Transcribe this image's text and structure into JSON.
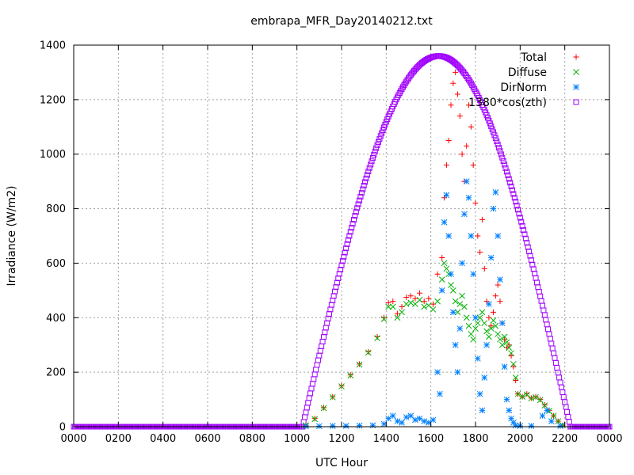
{
  "chart_data": {
    "type": "scatter",
    "title": "embrapa_MFR_Day20140212.txt",
    "xlabel": "UTC Hour",
    "ylabel": "Irradiance (W/m2)",
    "xlim": [
      0,
      24
    ],
    "ylim": [
      0,
      1400
    ],
    "grid": true,
    "legend_position": "top-right",
    "x_ticks": [
      {
        "value": 0,
        "label": "0000"
      },
      {
        "value": 2,
        "label": "0200"
      },
      {
        "value": 4,
        "label": "0400"
      },
      {
        "value": 6,
        "label": "0600"
      },
      {
        "value": 8,
        "label": "0800"
      },
      {
        "value": 10,
        "label": "1000"
      },
      {
        "value": 12,
        "label": "1200"
      },
      {
        "value": 14,
        "label": "1400"
      },
      {
        "value": 16,
        "label": "1600"
      },
      {
        "value": 18,
        "label": "1800"
      },
      {
        "value": 20,
        "label": "2000"
      },
      {
        "value": 22,
        "label": "2200"
      },
      {
        "value": 24,
        "label": "0000"
      }
    ],
    "y_ticks": [
      0,
      200,
      400,
      600,
      800,
      1000,
      1200,
      1400
    ],
    "series": [
      {
        "name": "Total",
        "marker": "plus",
        "color": "#ff0000",
        "points": [
          [
            10.4,
            5
          ],
          [
            10.8,
            30
          ],
          [
            11.2,
            70
          ],
          [
            11.6,
            110
          ],
          [
            12.0,
            150
          ],
          [
            12.4,
            190
          ],
          [
            12.8,
            230
          ],
          [
            13.2,
            275
          ],
          [
            13.6,
            330
          ],
          [
            13.9,
            400
          ],
          [
            14.1,
            455
          ],
          [
            14.3,
            460
          ],
          [
            14.5,
            415
          ],
          [
            14.7,
            440
          ],
          [
            14.9,
            475
          ],
          [
            15.1,
            480
          ],
          [
            15.3,
            470
          ],
          [
            15.5,
            490
          ],
          [
            15.7,
            460
          ],
          [
            15.9,
            470
          ],
          [
            16.1,
            450
          ],
          [
            16.3,
            560
          ],
          [
            16.5,
            620
          ],
          [
            16.6,
            840
          ],
          [
            16.7,
            960
          ],
          [
            16.8,
            1050
          ],
          [
            16.9,
            1180
          ],
          [
            17.0,
            1260
          ],
          [
            17.1,
            1300
          ],
          [
            17.2,
            1220
          ],
          [
            17.3,
            1140
          ],
          [
            17.4,
            1000
          ],
          [
            17.5,
            900
          ],
          [
            17.6,
            1030
          ],
          [
            17.7,
            1180
          ],
          [
            17.8,
            1100
          ],
          [
            17.9,
            960
          ],
          [
            18.0,
            820
          ],
          [
            18.1,
            700
          ],
          [
            18.2,
            640
          ],
          [
            18.3,
            760
          ],
          [
            18.4,
            580
          ],
          [
            18.5,
            460
          ],
          [
            18.6,
            400
          ],
          [
            18.7,
            370
          ],
          [
            18.8,
            420
          ],
          [
            18.9,
            480
          ],
          [
            19.0,
            520
          ],
          [
            19.1,
            460
          ],
          [
            19.2,
            380
          ],
          [
            19.3,
            320
          ],
          [
            19.4,
            290
          ],
          [
            19.5,
            300
          ],
          [
            19.6,
            260
          ],
          [
            19.7,
            220
          ],
          [
            19.8,
            170
          ],
          [
            19.9,
            120
          ],
          [
            20.1,
            110
          ],
          [
            20.3,
            120
          ],
          [
            20.5,
            105
          ],
          [
            20.7,
            110
          ],
          [
            20.9,
            100
          ],
          [
            21.1,
            80
          ],
          [
            21.3,
            60
          ],
          [
            21.5,
            40
          ],
          [
            21.7,
            20
          ],
          [
            21.9,
            5
          ]
        ]
      },
      {
        "name": "Diffuse",
        "marker": "cross",
        "color": "#00b000",
        "points": [
          [
            10.4,
            5
          ],
          [
            10.8,
            28
          ],
          [
            11.2,
            68
          ],
          [
            11.6,
            108
          ],
          [
            12.0,
            148
          ],
          [
            12.4,
            188
          ],
          [
            12.8,
            228
          ],
          [
            13.2,
            272
          ],
          [
            13.6,
            325
          ],
          [
            13.9,
            395
          ],
          [
            14.1,
            440
          ],
          [
            14.3,
            440
          ],
          [
            14.5,
            400
          ],
          [
            14.7,
            420
          ],
          [
            14.9,
            450
          ],
          [
            15.1,
            455
          ],
          [
            15.3,
            450
          ],
          [
            15.5,
            465
          ],
          [
            15.7,
            440
          ],
          [
            15.9,
            445
          ],
          [
            16.1,
            430
          ],
          [
            16.3,
            460
          ],
          [
            16.5,
            540
          ],
          [
            16.6,
            600
          ],
          [
            16.7,
            580
          ],
          [
            16.8,
            560
          ],
          [
            16.9,
            520
          ],
          [
            17.0,
            500
          ],
          [
            17.1,
            460
          ],
          [
            17.2,
            420
          ],
          [
            17.3,
            450
          ],
          [
            17.4,
            480
          ],
          [
            17.5,
            440
          ],
          [
            17.6,
            400
          ],
          [
            17.7,
            370
          ],
          [
            17.8,
            340
          ],
          [
            17.9,
            320
          ],
          [
            18.0,
            360
          ],
          [
            18.1,
            380
          ],
          [
            18.2,
            400
          ],
          [
            18.3,
            420
          ],
          [
            18.4,
            380
          ],
          [
            18.5,
            350
          ],
          [
            18.6,
            330
          ],
          [
            18.7,
            360
          ],
          [
            18.8,
            390
          ],
          [
            18.9,
            370
          ],
          [
            19.0,
            340
          ],
          [
            19.1,
            320
          ],
          [
            19.2,
            300
          ],
          [
            19.3,
            330
          ],
          [
            19.4,
            310
          ],
          [
            19.5,
            290
          ],
          [
            19.6,
            270
          ],
          [
            19.7,
            230
          ],
          [
            19.8,
            180
          ],
          [
            19.9,
            120
          ],
          [
            20.1,
            110
          ],
          [
            20.3,
            118
          ],
          [
            20.5,
            104
          ],
          [
            20.7,
            108
          ],
          [
            20.9,
            98
          ],
          [
            21.1,
            78
          ],
          [
            21.3,
            58
          ],
          [
            21.5,
            40
          ],
          [
            21.7,
            20
          ],
          [
            21.9,
            5
          ]
        ]
      },
      {
        "name": "DirNorm",
        "marker": "star",
        "color": "#0080ff",
        "points": [
          [
            10.4,
            2
          ],
          [
            11.0,
            2
          ],
          [
            11.6,
            3
          ],
          [
            12.2,
            3
          ],
          [
            12.8,
            4
          ],
          [
            13.4,
            5
          ],
          [
            13.9,
            10
          ],
          [
            14.1,
            30
          ],
          [
            14.3,
            40
          ],
          [
            14.5,
            20
          ],
          [
            14.7,
            15
          ],
          [
            14.9,
            35
          ],
          [
            15.1,
            40
          ],
          [
            15.3,
            25
          ],
          [
            15.5,
            30
          ],
          [
            15.7,
            20
          ],
          [
            15.9,
            15
          ],
          [
            16.1,
            25
          ],
          [
            16.3,
            200
          ],
          [
            16.4,
            120
          ],
          [
            16.5,
            500
          ],
          [
            16.6,
            750
          ],
          [
            16.7,
            850
          ],
          [
            16.8,
            700
          ],
          [
            16.9,
            560
          ],
          [
            17.0,
            420
          ],
          [
            17.1,
            300
          ],
          [
            17.2,
            200
          ],
          [
            17.3,
            360
          ],
          [
            17.4,
            600
          ],
          [
            17.5,
            780
          ],
          [
            17.6,
            900
          ],
          [
            17.7,
            840
          ],
          [
            17.8,
            700
          ],
          [
            17.9,
            560
          ],
          [
            18.0,
            400
          ],
          [
            18.1,
            250
          ],
          [
            18.2,
            120
          ],
          [
            18.3,
            60
          ],
          [
            18.4,
            180
          ],
          [
            18.5,
            300
          ],
          [
            18.6,
            450
          ],
          [
            18.7,
            620
          ],
          [
            18.8,
            800
          ],
          [
            18.9,
            860
          ],
          [
            19.0,
            700
          ],
          [
            19.1,
            540
          ],
          [
            19.2,
            380
          ],
          [
            19.3,
            220
          ],
          [
            19.4,
            100
          ],
          [
            19.5,
            60
          ],
          [
            19.6,
            30
          ],
          [
            19.7,
            15
          ],
          [
            19.8,
            5
          ],
          [
            20.0,
            3
          ],
          [
            20.5,
            3
          ],
          [
            21.0,
            40
          ],
          [
            21.2,
            60
          ],
          [
            21.4,
            20
          ],
          [
            21.8,
            3
          ]
        ]
      },
      {
        "name": "1380*cos(zth)",
        "marker": "square",
        "color": "#a000ff",
        "model": {
          "amplitude": 1360,
          "rise": 10.25,
          "set": 22.25,
          "noon": 16.35
        }
      }
    ]
  }
}
